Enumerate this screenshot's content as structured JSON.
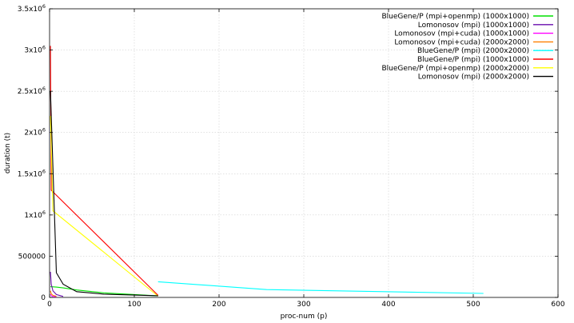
{
  "chart_data": {
    "type": "line",
    "xlabel": "proc-num (p)",
    "ylabel": "duration (t)",
    "xlim": [
      0,
      600
    ],
    "ylim": [
      0,
      3500000
    ],
    "grid": true,
    "legend_position": "top-right",
    "x_ticks": [
      0,
      100,
      200,
      300,
      400,
      500,
      600
    ],
    "x_tick_labels": [
      "0",
      "100",
      "200",
      "300",
      "400",
      "500",
      "600"
    ],
    "y_ticks": [
      0,
      500000,
      1000000,
      1500000,
      2000000,
      2500000,
      3000000,
      3500000
    ],
    "y_tick_labels": [
      {
        "mantissa": "0",
        "exp": ""
      },
      {
        "mantissa": "500000",
        "exp": ""
      },
      {
        "mantissa": "1x10",
        "exp": "6"
      },
      {
        "mantissa": "1.5x10",
        "exp": "6"
      },
      {
        "mantissa": "2x10",
        "exp": "6"
      },
      {
        "mantissa": "2.5x10",
        "exp": "6"
      },
      {
        "mantissa": "3x10",
        "exp": "6"
      },
      {
        "mantissa": "3.5x10",
        "exp": "6"
      }
    ],
    "series": [
      {
        "name": "BlueGene/P (mpi+openmp) (1000x1000)",
        "color": "#00e000",
        "x": [
          1,
          8,
          16,
          32,
          64,
          128
        ],
        "y": [
          130000,
          125000,
          115000,
          90000,
          55000,
          18000
        ]
      },
      {
        "name": "Lomonosov (mpi) (1000x1000)",
        "color": "#6a0dad",
        "x": [
          1,
          2,
          4,
          8,
          16
        ],
        "y": [
          310000,
          160000,
          80000,
          35000,
          12000
        ]
      },
      {
        "name": "Lomonosov (mpi+cuda) (1000x1000)",
        "color": "#ff00ff",
        "x": [
          1,
          2,
          4,
          8
        ],
        "y": [
          40000,
          22000,
          12000,
          8000
        ]
      },
      {
        "name": "Lomonosov (mpi+cuda) (2000x2000)",
        "color": "#ff7f00",
        "x": [
          1,
          2,
          4,
          8
        ],
        "y": [
          80000,
          45000,
          25000,
          15000
        ]
      },
      {
        "name": "BlueGene/P (mpi) (2000x2000)",
        "color": "#00ffff",
        "x": [
          128,
          256,
          512
        ],
        "y": [
          190000,
          95000,
          48000
        ]
      },
      {
        "name": "BlueGene/P (mpi) (1000x1000)",
        "color": "#ff0000",
        "x": [
          1,
          2,
          128
        ],
        "y": [
          3050000,
          1300000,
          25000
        ]
      },
      {
        "name": "BlueGene/P (mpi+openmp) (2000x2000)",
        "color": "#ffff00",
        "x": [
          1,
          4,
          128
        ],
        "y": [
          2200000,
          1050000,
          15000
        ]
      },
      {
        "name": "Lomonosov (mpi) (2000x2000)",
        "color": "#000000",
        "x": [
          1,
          8,
          16,
          32,
          64,
          128
        ],
        "y": [
          2500000,
          300000,
          160000,
          70000,
          40000,
          20000
        ]
      }
    ]
  }
}
